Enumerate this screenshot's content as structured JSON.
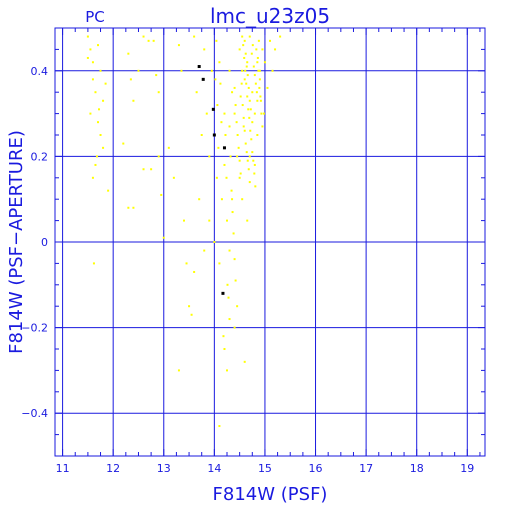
{
  "chart_data": {
    "type": "scatter",
    "title": "lmc_u23z05",
    "corner_label": "PC",
    "xlabel": "F814W (PSF)",
    "ylabel": "F814W (PSF−APERTURE)",
    "xlim": [
      10.85,
      19.35
    ],
    "ylim": [
      -0.5,
      0.5
    ],
    "x_ticks": [
      11,
      12,
      13,
      14,
      15,
      16,
      17,
      18,
      19
    ],
    "x_tick_labels": [
      "11",
      "12",
      "13",
      "14",
      "15",
      "16",
      "17",
      "18",
      "19"
    ],
    "y_ticks": [
      -0.4,
      -0.2,
      0,
      0.2,
      0.4
    ],
    "y_tick_labels": [
      "−0.4",
      "−0.2",
      "0",
      "0.2",
      "0.4"
    ],
    "grid": true,
    "colors": {
      "axes": "#1a1adf",
      "grid": "#1a1adf",
      "points": "#ffff00",
      "highlight": "#000000",
      "background": "#ffffff"
    },
    "series": [
      {
        "color": "#ffff00",
        "points": [
          [
            11.5,
            0.48
          ],
          [
            11.55,
            0.45
          ],
          [
            11.6,
            0.42
          ],
          [
            11.7,
            0.46
          ],
          [
            11.75,
            0.4
          ],
          [
            11.6,
            0.38
          ],
          [
            11.65,
            0.35
          ],
          [
            11.8,
            0.33
          ],
          [
            11.55,
            0.3
          ],
          [
            11.7,
            0.28
          ],
          [
            11.75,
            0.25
          ],
          [
            11.8,
            0.22
          ],
          [
            11.65,
            0.18
          ],
          [
            11.6,
            0.15
          ],
          [
            11.9,
            0.12
          ],
          [
            11.62,
            -0.05
          ],
          [
            11.85,
            0.37
          ],
          [
            11.5,
            0.43
          ],
          [
            11.72,
            0.31
          ],
          [
            11.68,
            0.2
          ],
          [
            12.3,
            0.44
          ],
          [
            12.35,
            0.38
          ],
          [
            12.4,
            0.33
          ],
          [
            12.5,
            0.4
          ],
          [
            12.2,
            0.23
          ],
          [
            12.4,
            0.08
          ],
          [
            12.3,
            0.08
          ],
          [
            12.6,
            0.17
          ],
          [
            12.7,
            0.47
          ],
          [
            12.8,
            0.47
          ],
          [
            12.85,
            0.39
          ],
          [
            12.9,
            0.35
          ],
          [
            12.75,
            0.17
          ],
          [
            12.95,
            0.11
          ],
          [
            12.6,
            0.48
          ],
          [
            12.9,
            0.2
          ],
          [
            13.0,
            0.01
          ],
          [
            13.1,
            0.22
          ],
          [
            13.3,
            0.46
          ],
          [
            13.35,
            0.4
          ],
          [
            13.2,
            0.15
          ],
          [
            13.4,
            0.05
          ],
          [
            13.3,
            -0.3
          ],
          [
            13.45,
            -0.05
          ],
          [
            13.5,
            -0.15
          ],
          [
            13.55,
            -0.17
          ],
          [
            13.6,
            0.48
          ],
          [
            13.65,
            0.35
          ],
          [
            13.7,
            0.1
          ],
          [
            13.75,
            0.25
          ],
          [
            13.8,
            0.45
          ],
          [
            13.85,
            0.3
          ],
          [
            13.9,
            0.2
          ],
          [
            13.95,
            0.4
          ],
          [
            13.6,
            -0.07
          ],
          [
            13.8,
            -0.02
          ],
          [
            13.9,
            0.05
          ],
          [
            14.0,
            0.0
          ],
          [
            14.05,
            0.15
          ],
          [
            14.1,
            -0.05
          ],
          [
            14.15,
            0.1
          ],
          [
            14.2,
            -0.25
          ],
          [
            14.25,
            -0.3
          ],
          [
            14.1,
            -0.43
          ],
          [
            14.3,
            0.27
          ],
          [
            14.35,
            0.1
          ],
          [
            14.4,
            -0.2
          ],
          [
            14.45,
            -0.15
          ],
          [
            14.3,
            -0.02
          ],
          [
            14.2,
            0.18
          ],
          [
            14.25,
            0.05
          ],
          [
            14.35,
            0.35
          ],
          [
            14.4,
            0.3
          ],
          [
            14.45,
            0.2
          ],
          [
            14.5,
            0.45
          ],
          [
            14.55,
            0.4
          ],
          [
            14.6,
            0.38
          ],
          [
            14.65,
            0.42
          ],
          [
            14.7,
            0.48
          ],
          [
            14.75,
            0.35
          ],
          [
            14.8,
            0.3
          ],
          [
            14.85,
            0.25
          ],
          [
            14.9,
            0.4
          ],
          [
            14.95,
            0.45
          ],
          [
            14.5,
            0.15
          ],
          [
            14.55,
            0.1
          ],
          [
            14.6,
            -0.28
          ],
          [
            14.65,
            0.05
          ],
          [
            14.7,
            0.2
          ],
          [
            14.75,
            0.28
          ],
          [
            14.8,
            0.18
          ],
          [
            14.85,
            0.33
          ],
          [
            14.6,
            0.47
          ],
          [
            14.62,
            0.44
          ],
          [
            14.64,
            0.41
          ],
          [
            14.66,
            0.39
          ],
          [
            14.68,
            0.36
          ],
          [
            14.7,
            0.33
          ],
          [
            14.72,
            0.31
          ],
          [
            14.58,
            0.29
          ],
          [
            14.6,
            0.26
          ],
          [
            14.62,
            0.23
          ],
          [
            14.64,
            0.21
          ],
          [
            14.66,
            0.19
          ],
          [
            14.68,
            0.17
          ],
          [
            14.7,
            0.14
          ],
          [
            14.52,
            0.34
          ],
          [
            14.54,
            0.37
          ],
          [
            14.56,
            0.32
          ],
          [
            14.58,
            0.27
          ],
          [
            14.74,
            0.44
          ],
          [
            14.76,
            0.46
          ],
          [
            14.78,
            0.41
          ],
          [
            14.8,
            0.39
          ],
          [
            14.82,
            0.37
          ],
          [
            14.84,
            0.35
          ],
          [
            14.86,
            0.43
          ],
          [
            14.88,
            0.47
          ],
          [
            14.9,
            0.38
          ],
          [
            14.92,
            0.33
          ],
          [
            14.4,
            0.36
          ],
          [
            14.42,
            0.32
          ],
          [
            14.44,
            0.28
          ],
          [
            14.46,
            0.25
          ],
          [
            14.48,
            0.22
          ],
          [
            14.5,
            0.19
          ],
          [
            14.52,
            0.16
          ],
          [
            14.3,
            0.4
          ],
          [
            14.32,
            0.2
          ],
          [
            14.34,
            0.12
          ],
          [
            14.36,
            0.07
          ],
          [
            14.38,
            0.02
          ],
          [
            14.4,
            -0.04
          ],
          [
            14.42,
            -0.09
          ],
          [
            14.2,
            0.3
          ],
          [
            14.22,
            0.25
          ],
          [
            14.24,
            0.15
          ],
          [
            14.26,
            -0.1
          ],
          [
            14.28,
            -0.13
          ],
          [
            14.3,
            -0.18
          ],
          [
            14.18,
            -0.22
          ],
          [
            15.0,
            0.42
          ],
          [
            15.1,
            0.47
          ],
          [
            15.2,
            0.45
          ],
          [
            15.3,
            0.48
          ],
          [
            15.05,
            0.36
          ],
          [
            15.15,
            0.4
          ],
          [
            14.98,
            0.3
          ],
          [
            14.1,
            0.42
          ],
          [
            14.12,
            0.37
          ],
          [
            14.14,
            0.28
          ],
          [
            14.08,
            0.22
          ],
          [
            14.06,
            0.32
          ],
          [
            14.04,
            0.47
          ],
          [
            14.02,
            0.38
          ],
          [
            14.55,
            0.48
          ],
          [
            14.57,
            0.46
          ],
          [
            14.59,
            0.43
          ],
          [
            14.61,
            0.4
          ],
          [
            14.63,
            0.37
          ],
          [
            14.65,
            0.34
          ],
          [
            14.67,
            0.31
          ],
          [
            14.69,
            0.29
          ],
          [
            14.71,
            0.26
          ],
          [
            14.73,
            0.24
          ],
          [
            14.75,
            0.21
          ],
          [
            14.77,
            0.19
          ],
          [
            14.79,
            0.16
          ],
          [
            14.81,
            0.13
          ],
          [
            14.83,
            0.45
          ],
          [
            14.85,
            0.42
          ],
          [
            14.87,
            0.4
          ],
          [
            14.89,
            0.36
          ],
          [
            14.91,
            0.34
          ],
          [
            14.93,
            0.3
          ],
          [
            14.95,
            0.27
          ]
        ]
      },
      {
        "color": "#000000",
        "points": [
          [
            13.7,
            0.41
          ],
          [
            13.78,
            0.38
          ],
          [
            13.98,
            0.31
          ],
          [
            14.0,
            0.25
          ],
          [
            14.2,
            0.22
          ],
          [
            14.17,
            -0.12
          ]
        ]
      }
    ]
  }
}
